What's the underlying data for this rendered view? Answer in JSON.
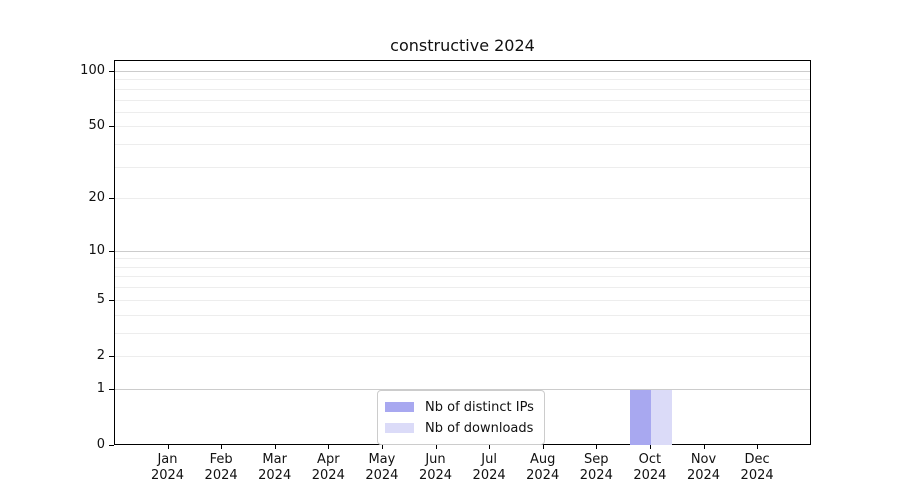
{
  "chart_data": {
    "type": "bar",
    "title": "constructive 2024",
    "categories": [
      "Jan 2024",
      "Feb 2024",
      "Mar 2024",
      "Apr 2024",
      "May 2024",
      "Jun 2024",
      "Jul 2024",
      "Aug 2024",
      "Sep 2024",
      "Oct 2024",
      "Nov 2024",
      "Dec 2024"
    ],
    "series": [
      {
        "name": "Nb of distinct IPs",
        "color": "#a8a8f0",
        "values": [
          0,
          0,
          0,
          0,
          0,
          0,
          0,
          0,
          0,
          1,
          0,
          0
        ]
      },
      {
        "name": "Nb of downloads",
        "color": "#dbdbf8",
        "values": [
          0,
          0,
          0,
          0,
          0,
          0,
          0,
          0,
          0,
          1,
          0,
          0
        ]
      }
    ],
    "yscale": "log1p",
    "y_ticks": [
      0,
      1,
      2,
      5,
      10,
      20,
      50,
      100
    ],
    "major_gridlines": [
      1,
      10,
      100
    ],
    "minor_gridlines": [
      2,
      3,
      4,
      5,
      6,
      7,
      8,
      9,
      20,
      30,
      40,
      50,
      60,
      70,
      80,
      90
    ],
    "ylim": [
      0,
      113
    ],
    "grid": "horizontal",
    "legend_position": "lower center"
  }
}
